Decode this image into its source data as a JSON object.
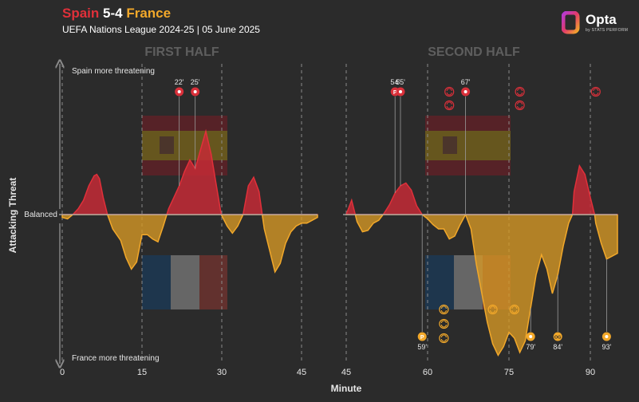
{
  "header": {
    "title_home": "Spain",
    "title_score": "5-4",
    "title_away": "France",
    "subtitle": "UEFA Nations League 2024-25 | 05 June 2025"
  },
  "logo": {
    "text": "Opta",
    "subtext": "by STATS PERFORM"
  },
  "colors": {
    "background": "#2b2b2b",
    "spain": "#c42a36",
    "spain_stroke": "#e0303a",
    "france": "#d99a25",
    "france_stroke": "#f2a82a",
    "grid": "#8a8a8a"
  },
  "chart_data": {
    "type": "area",
    "xlabel": "Minute",
    "ylabel": "Attacking Threat",
    "y_top_label": "Spain more threatening",
    "y_mid_label": "Balanced",
    "y_bottom_label": "France more threatening",
    "ylim": [
      -1,
      1
    ],
    "halves": [
      {
        "label": "FIRST HALF",
        "xlim": [
          0,
          48
        ],
        "ticks": [
          {
            "value": 0,
            "label": "0"
          },
          {
            "value": 15,
            "label": "15"
          },
          {
            "value": 30,
            "label": "30"
          },
          {
            "value": 45,
            "label": "45"
          }
        ],
        "points": [
          [
            0,
            -0.02
          ],
          [
            1,
            -0.03
          ],
          [
            2,
            0.0
          ],
          [
            3,
            0.04
          ],
          [
            4,
            0.1
          ],
          [
            5,
            0.2
          ],
          [
            6,
            0.27
          ],
          [
            6.5,
            0.28
          ],
          [
            7,
            0.25
          ],
          [
            7.7,
            0.12
          ],
          [
            8.5,
            0.0
          ],
          [
            9.5,
            -0.1
          ],
          [
            11,
            -0.18
          ],
          [
            12,
            -0.3
          ],
          [
            13,
            -0.38
          ],
          [
            14,
            -0.33
          ],
          [
            15,
            -0.14
          ],
          [
            16,
            -0.14
          ],
          [
            17,
            -0.17
          ],
          [
            18,
            -0.19
          ],
          [
            19,
            -0.08
          ],
          [
            20,
            0.04
          ],
          [
            21,
            0.12
          ],
          [
            22,
            0.2
          ],
          [
            23,
            0.3
          ],
          [
            24,
            0.38
          ],
          [
            25,
            0.32
          ],
          [
            26,
            0.45
          ],
          [
            27,
            0.58
          ],
          [
            28,
            0.42
          ],
          [
            29,
            0.2
          ],
          [
            29.9,
            0.0
          ],
          [
            31,
            -0.08
          ],
          [
            32,
            -0.13
          ],
          [
            33,
            -0.08
          ],
          [
            34,
            0.0
          ],
          [
            35,
            0.2
          ],
          [
            36,
            0.26
          ],
          [
            37,
            0.16
          ],
          [
            37.6,
            0.0
          ],
          [
            38,
            -0.1
          ],
          [
            39,
            -0.25
          ],
          [
            40,
            -0.4
          ],
          [
            41,
            -0.34
          ],
          [
            42,
            -0.2
          ],
          [
            43,
            -0.12
          ],
          [
            44,
            -0.08
          ],
          [
            45,
            -0.06
          ],
          [
            46,
            -0.06
          ],
          [
            47,
            -0.04
          ],
          [
            48,
            -0.02
          ]
        ],
        "markers": [
          {
            "minute": 22,
            "team": "spain",
            "kind": "goal",
            "label": "22'",
            "stack": 0
          },
          {
            "minute": 25,
            "team": "spain",
            "kind": "goal",
            "label": "25'",
            "stack": 0
          }
        ]
      },
      {
        "label": "SECOND HALF",
        "xlim": [
          45,
          95
        ],
        "ticks": [
          {
            "value": 45,
            "label": "45"
          },
          {
            "value": 60,
            "label": "60"
          },
          {
            "value": 75,
            "label": "75"
          },
          {
            "value": 90,
            "label": "90"
          }
        ],
        "points": [
          [
            45,
            0.0
          ],
          [
            46,
            0.1
          ],
          [
            47,
            -0.05
          ],
          [
            48,
            -0.12
          ],
          [
            49,
            -0.11
          ],
          [
            50,
            -0.06
          ],
          [
            51,
            -0.04
          ],
          [
            52,
            0.01
          ],
          [
            53,
            0.07
          ],
          [
            54,
            0.15
          ],
          [
            55,
            0.2
          ],
          [
            56,
            0.22
          ],
          [
            57,
            0.17
          ],
          [
            58,
            0.06
          ],
          [
            59,
            0.0
          ],
          [
            60,
            -0.03
          ],
          [
            61,
            -0.07
          ],
          [
            62,
            -0.1
          ],
          [
            63,
            -0.1
          ],
          [
            64,
            -0.17
          ],
          [
            65,
            -0.15
          ],
          [
            66,
            -0.07
          ],
          [
            67,
            0.0
          ],
          [
            68,
            -0.1
          ],
          [
            69,
            -0.35
          ],
          [
            70,
            -0.55
          ],
          [
            71,
            -0.75
          ],
          [
            72,
            -0.9
          ],
          [
            73,
            -0.98
          ],
          [
            74,
            -0.92
          ],
          [
            75,
            -0.82
          ],
          [
            76,
            -0.86
          ],
          [
            77,
            -0.96
          ],
          [
            78,
            -0.88
          ],
          [
            79,
            -0.65
          ],
          [
            80,
            -0.42
          ],
          [
            81,
            -0.28
          ],
          [
            82,
            -0.38
          ],
          [
            83,
            -0.55
          ],
          [
            84,
            -0.42
          ],
          [
            85,
            -0.22
          ],
          [
            86,
            -0.06
          ],
          [
            86.7,
            0.0
          ],
          [
            87,
            0.16
          ],
          [
            88,
            0.34
          ],
          [
            89,
            0.28
          ],
          [
            90,
            0.12
          ],
          [
            90.8,
            0.0
          ],
          [
            91,
            -0.06
          ],
          [
            92,
            -0.2
          ],
          [
            93,
            -0.31
          ],
          [
            94,
            -0.29
          ],
          [
            95,
            -0.27
          ]
        ],
        "markers": [
          {
            "minute": 54,
            "team": "spain",
            "kind": "penalty",
            "label": "54'",
            "stack": 0
          },
          {
            "minute": 55,
            "team": "spain",
            "kind": "goal",
            "label": "55'",
            "stack": 0
          },
          {
            "minute": 67,
            "team": "spain",
            "kind": "goal",
            "label": "67'",
            "stack": 0
          },
          {
            "minute": 59,
            "team": "france",
            "kind": "penalty",
            "label": "59'",
            "stack": 0
          },
          {
            "minute": 79,
            "team": "france",
            "kind": "goal",
            "label": "79'",
            "stack": 0
          },
          {
            "minute": 84,
            "team": "france",
            "kind": "own-goal",
            "label": "84'",
            "stack": 0
          },
          {
            "minute": 93,
            "team": "france",
            "kind": "goal",
            "label": "93'",
            "stack": 0
          },
          {
            "minute": 64,
            "team": "spain",
            "kind": "sub",
            "label": "",
            "stack": 0
          },
          {
            "minute": 64,
            "team": "spain",
            "kind": "sub",
            "label": "",
            "stack": 1
          },
          {
            "minute": 77,
            "team": "spain",
            "kind": "sub",
            "label": "",
            "stack": 0
          },
          {
            "minute": 77,
            "team": "spain",
            "kind": "sub",
            "label": "",
            "stack": 1
          },
          {
            "minute": 91,
            "team": "spain",
            "kind": "sub",
            "label": "",
            "stack": 0
          },
          {
            "minute": 63,
            "team": "france",
            "kind": "sub",
            "label": "",
            "stack": 0
          },
          {
            "minute": 63,
            "team": "france",
            "kind": "sub",
            "label": "",
            "stack": 1
          },
          {
            "minute": 63,
            "team": "france",
            "kind": "sub",
            "label": "",
            "stack": 2
          },
          {
            "minute": 72,
            "team": "france",
            "kind": "sub",
            "label": "",
            "stack": 0
          },
          {
            "minute": 76,
            "team": "france",
            "kind": "sub",
            "label": "",
            "stack": 0
          }
        ]
      }
    ]
  }
}
